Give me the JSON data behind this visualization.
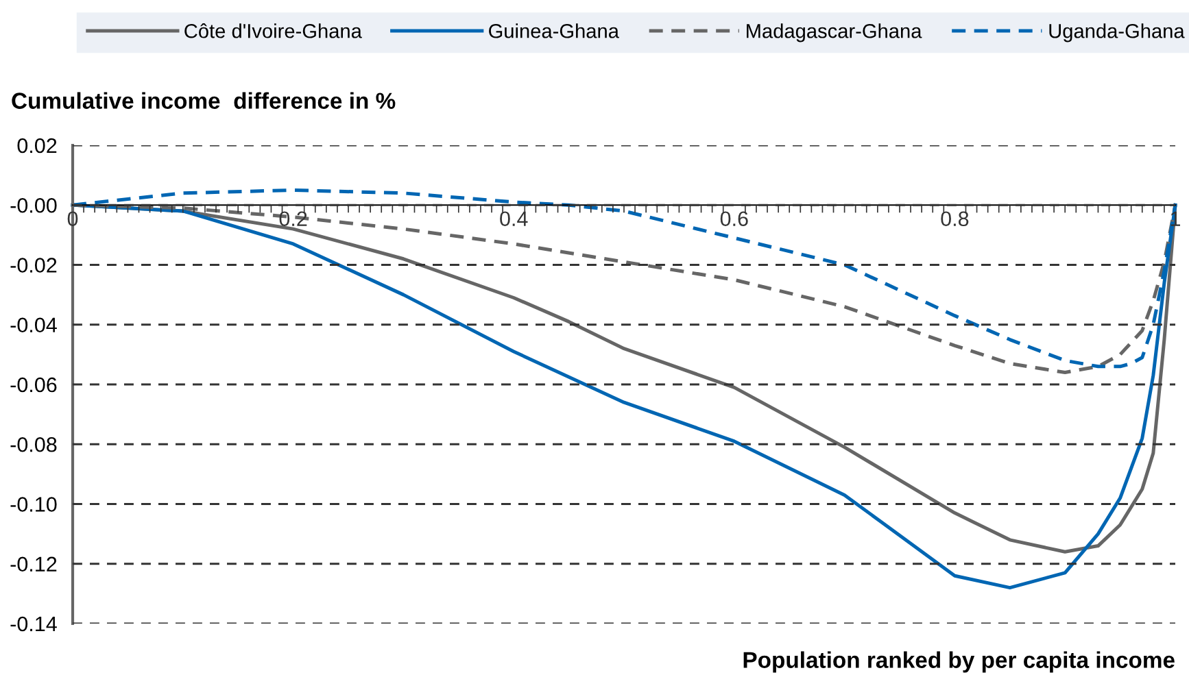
{
  "chart_data": {
    "type": "line",
    "xlabel": "Population ranked by per capita income",
    "ylabel": "Cumulative income  difference in %",
    "xlim": [
      0,
      1
    ],
    "ylim": [
      -0.14,
      0.02
    ],
    "xticks": [
      0,
      0.2,
      0.4,
      0.6,
      0.8,
      1
    ],
    "yticks": [
      {
        "value": 0.02,
        "label": "0.02"
      },
      {
        "value": 0,
        "label": "-0.00"
      },
      {
        "value": -0.02,
        "label": "-0.02"
      },
      {
        "value": -0.04,
        "label": "-0.04"
      },
      {
        "value": -0.06,
        "label": "-0.06"
      },
      {
        "value": -0.08,
        "label": "-0.08"
      },
      {
        "value": -0.1,
        "label": "-0.10"
      },
      {
        "value": -0.12,
        "label": "-0.12"
      },
      {
        "value": -0.14,
        "label": "-0.14"
      }
    ],
    "grid": "y",
    "legend": "top",
    "marker": "none",
    "series": [
      {
        "name": "Côte d'Ivoire-Ghana",
        "color": "#666666",
        "line_style": "solid",
        "x": [
          0,
          0.1,
          0.2,
          0.3,
          0.4,
          0.45,
          0.5,
          0.6,
          0.7,
          0.8,
          0.85,
          0.9,
          0.93,
          0.95,
          0.97,
          0.98,
          0.99,
          1
        ],
        "values": [
          0,
          -0.002,
          -0.008,
          -0.018,
          -0.031,
          -0.039,
          -0.048,
          -0.061,
          -0.081,
          -0.103,
          -0.112,
          -0.116,
          -0.114,
          -0.107,
          -0.095,
          -0.083,
          -0.045,
          0
        ]
      },
      {
        "name": "Guinea-Ghana",
        "color": "#0066b3",
        "line_style": "solid",
        "x": [
          0,
          0.1,
          0.2,
          0.3,
          0.4,
          0.5,
          0.6,
          0.7,
          0.8,
          0.85,
          0.9,
          0.93,
          0.95,
          0.97,
          0.98,
          0.99,
          1
        ],
        "values": [
          0,
          -0.002,
          -0.013,
          -0.03,
          -0.049,
          -0.066,
          -0.079,
          -0.097,
          -0.124,
          -0.128,
          -0.123,
          -0.11,
          -0.098,
          -0.078,
          -0.057,
          -0.026,
          0
        ]
      },
      {
        "name": "Madagascar-Ghana",
        "color": "#666666",
        "line_style": "dashed",
        "x": [
          0,
          0.1,
          0.2,
          0.3,
          0.4,
          0.5,
          0.6,
          0.7,
          0.8,
          0.85,
          0.9,
          0.93,
          0.95,
          0.97,
          0.98,
          0.99,
          1
        ],
        "values": [
          0,
          -0.001,
          -0.004,
          -0.008,
          -0.013,
          -0.019,
          -0.025,
          -0.034,
          -0.047,
          -0.053,
          -0.056,
          -0.054,
          -0.05,
          -0.042,
          -0.032,
          -0.019,
          0
        ]
      },
      {
        "name": "Uganda-Ghana",
        "color": "#0066b3",
        "line_style": "dashed",
        "x": [
          0,
          0.05,
          0.1,
          0.2,
          0.3,
          0.4,
          0.45,
          0.5,
          0.6,
          0.7,
          0.8,
          0.85,
          0.9,
          0.93,
          0.95,
          0.96,
          0.97,
          0.98,
          0.99,
          1
        ],
        "values": [
          0,
          0.002,
          0.004,
          0.005,
          0.004,
          0.001,
          0,
          -0.002,
          -0.011,
          -0.02,
          -0.037,
          -0.045,
          -0.052,
          -0.054,
          -0.054,
          -0.053,
          -0.051,
          -0.04,
          -0.022,
          0
        ]
      }
    ]
  }
}
